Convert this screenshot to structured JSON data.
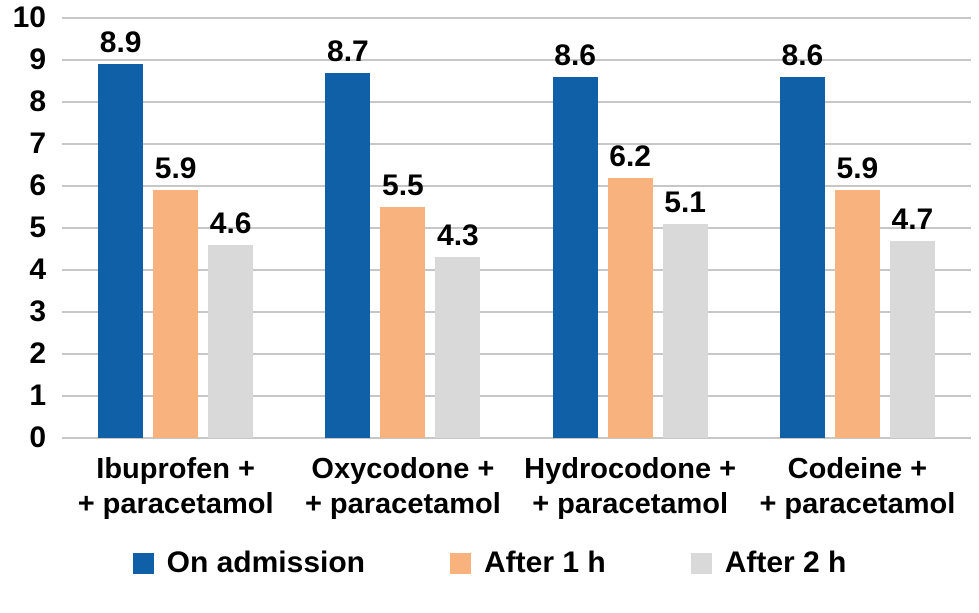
{
  "chart_data": {
    "type": "bar",
    "categories": [
      [
        "Ibuprofen +",
        "+ paracetamol"
      ],
      [
        "Oxycodone +",
        "+ paracetamol"
      ],
      [
        "Hydrocodone +",
        "+ paracetamol"
      ],
      [
        "Codeine +",
        "+ paracetamol"
      ]
    ],
    "series": [
      {
        "name": "On admission",
        "color": "#1060a8",
        "values": [
          8.9,
          8.7,
          8.6,
          8.6
        ]
      },
      {
        "name": "After 1 h",
        "color": "#f8b27d",
        "values": [
          5.9,
          5.5,
          6.2,
          5.9
        ]
      },
      {
        "name": "After 2 h",
        "color": "#d9d9d9",
        "values": [
          4.6,
          4.3,
          5.1,
          4.7
        ]
      }
    ],
    "yticks": [
      0,
      1,
      2,
      3,
      4,
      5,
      6,
      7,
      8,
      9,
      10
    ],
    "ylim": [
      0,
      10
    ],
    "grid": true,
    "legend_position": "bottom"
  }
}
